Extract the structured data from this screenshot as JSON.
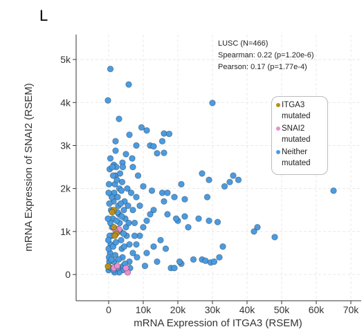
{
  "chart_data": {
    "type": "scatter",
    "panel_label": "L",
    "x_label": "mRNA Expression of ITGA3 (RSEM)",
    "y_label": "mRNA Expression of SNAI2  (RSEM)",
    "annotations": [
      "LUSC (N=466)",
      "Spearman: 0.22 (p=1.20e-6)",
      "Pearson: 0.17 (p=1.77e-4)"
    ],
    "xlim": [
      -9400,
      73000
    ],
    "ylim": [
      -610,
      5580
    ],
    "xticks": [
      0,
      {
        "value": 10000,
        "label": "10k"
      },
      {
        "value": 20000,
        "label": "20k"
      },
      {
        "value": 30000,
        "label": "30k"
      },
      {
        "value": 40000,
        "label": "40k"
      },
      {
        "value": 50000,
        "label": "50k"
      },
      {
        "value": 60000,
        "label": "60k"
      },
      {
        "value": 70000,
        "label": "70k"
      }
    ],
    "yticks": [
      0,
      {
        "value": 1000,
        "label": "1k"
      },
      {
        "value": 2000,
        "label": "2k"
      },
      {
        "value": 3000,
        "label": "3k"
      },
      {
        "value": 4000,
        "label": "4k"
      },
      {
        "value": 5000,
        "label": "5k"
      }
    ],
    "grid": true,
    "series": [
      {
        "name": "ITGA3 mutated",
        "color": "#b8901e",
        "x": [
          -200,
          1500,
          1000,
          2200,
          1800,
          1500
        ],
        "values": [
          190,
          1500,
          1450,
          950,
          900,
          1100
        ]
      },
      {
        "name": "SNAI2 mutated",
        "color": "#ea8fcf",
        "x": [
          3000,
          2000,
          5500,
          5000,
          1500,
          2500
        ],
        "values": [
          1050,
          1000,
          50,
          150,
          150,
          200
        ]
      },
      {
        "name": "Neither mutated",
        "color": "#4b9be0",
        "x": [
          500,
          5800,
          -200,
          3000,
          30000,
          9500,
          11000,
          16000,
          17500,
          6000,
          2000,
          8000,
          12000,
          15500,
          13000,
          2000,
          5000,
          14000,
          16000,
          4000,
          1500,
          7000,
          27000,
          29000,
          36000,
          37500,
          35000,
          33500,
          65000,
          21000,
          10000,
          12500,
          15500,
          17000,
          19000,
          22000,
          28500,
          26000,
          29000,
          31500,
          43000,
          42000,
          48000,
          33000,
          32000,
          27000,
          28000,
          29500,
          30500,
          24500,
          21000,
          18000,
          19000,
          20500,
          16500,
          15000,
          23000,
          20000,
          17000,
          13000,
          12000,
          11000,
          10000,
          9000,
          8000,
          7000,
          6000,
          4000,
          3000,
          11000,
          13000,
          14000,
          10500,
          22000,
          19500,
          16000,
          0,
          200,
          400,
          600,
          800,
          1000,
          1200,
          1400,
          1600,
          1800,
          2000,
          2200,
          2400,
          2600,
          2800,
          3000,
          3200,
          3400,
          3600,
          3800,
          4000,
          4200,
          4400,
          4600,
          4800,
          5000,
          5200,
          5400,
          5600,
          5800,
          6000,
          0,
          300,
          500,
          700,
          900,
          100,
          300,
          500,
          0,
          200,
          -200,
          -100,
          100,
          1300,
          1500,
          1700,
          1900,
          2100,
          2300,
          2500,
          2700,
          2900,
          3100,
          3300,
          3500,
          3700,
          3900,
          4100,
          4300,
          4500,
          4700,
          6500,
          7000,
          7500,
          8000,
          8500,
          9000,
          6800,
          7500,
          8200,
          6200,
          1100,
          1300,
          800,
          600,
          1400,
          2600,
          3800
        ],
        "values": [
          4780,
          4420,
          4050,
          3620,
          3990,
          3420,
          3350,
          3280,
          3270,
          3250,
          3100,
          3000,
          3000,
          3100,
          2980,
          2880,
          2800,
          2820,
          2830,
          2600,
          2550,
          2500,
          2350,
          2200,
          2300,
          2200,
          2150,
          2050,
          1950,
          2100,
          2050,
          1950,
          1900,
          1900,
          1800,
          1750,
          1800,
          1300,
          1250,
          1220,
          1100,
          1000,
          870,
          650,
          400,
          350,
          320,
          280,
          300,
          350,
          250,
          150,
          150,
          300,
          600,
          800,
          1100,
          1250,
          1400,
          1500,
          1400,
          1250,
          1100,
          900,
          700,
          500,
          300,
          100,
          50,
          500,
          650,
          300,
          200,
          1350,
          1300,
          1700,
          100,
          300,
          500,
          700,
          900,
          1100,
          1300,
          1700,
          1900,
          2100,
          2300,
          2500,
          2200,
          1800,
          1600,
          1400,
          1200,
          1000,
          800,
          600,
          400,
          200,
          1500,
          1700,
          1300,
          1100,
          900,
          2000,
          1600,
          1200,
          700,
          600,
          900,
          1200,
          1500,
          1800,
          2100,
          2450,
          2700,
          1900,
          1650,
          1300,
          800,
          400,
          650,
          300,
          50,
          450,
          750,
          1250,
          1450,
          1050,
          350,
          2000,
          2350,
          1650,
          1950,
          2150,
          2500,
          950,
          650,
          250,
          1900,
          1500,
          1200,
          1800,
          2300,
          1600,
          2700,
          900,
          400,
          150,
          2500,
          2300,
          350,
          150,
          100,
          150,
          1350
        ]
      }
    ]
  }
}
